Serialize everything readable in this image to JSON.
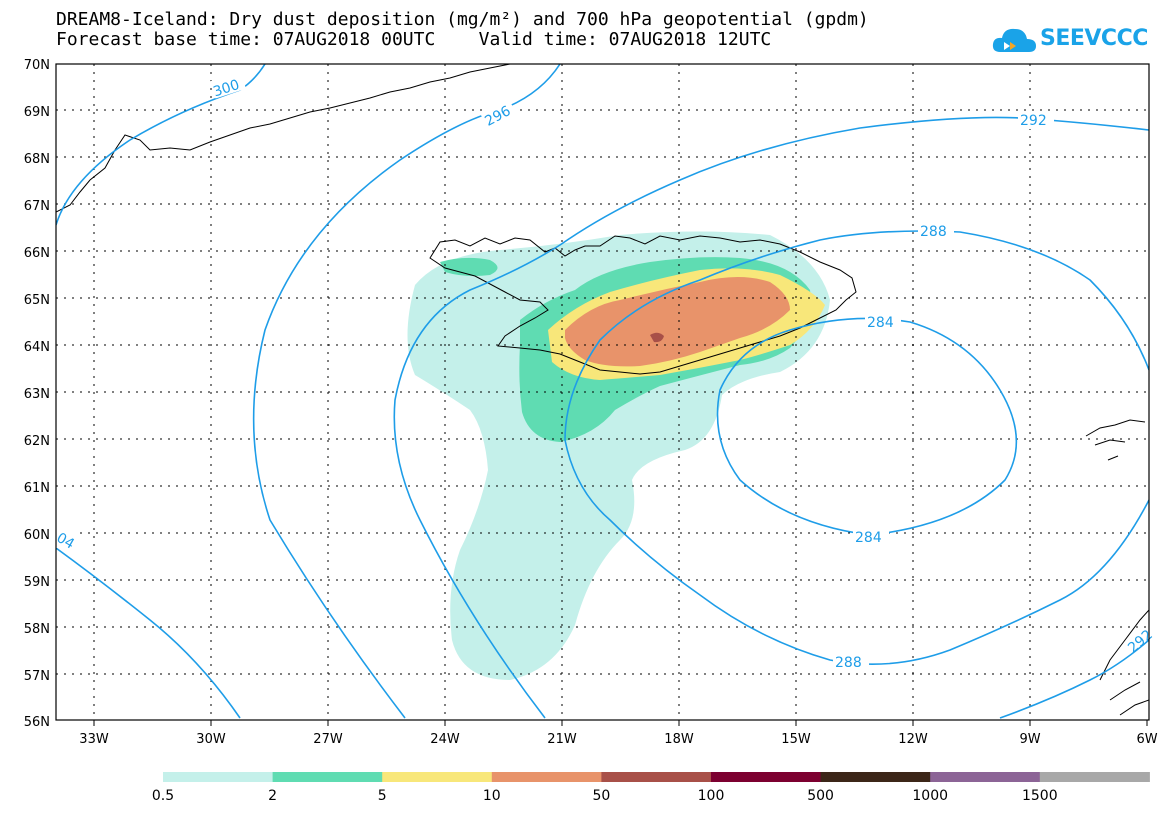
{
  "title": {
    "line1": "DREAM8-Iceland: Dry dust deposition (mg/m²) and 700 hPa geopotential (gpdm)",
    "line2": "Forecast base time: 07AUG2018 00UTC    Valid time: 07AUG2018 12UTC"
  },
  "logo": {
    "text": "SEEVCCC",
    "icon": "cloud-icon",
    "color": "#1aa3e8"
  },
  "map": {
    "lat_labels": [
      "70N",
      "69N",
      "68N",
      "67N",
      "66N",
      "65N",
      "64N",
      "63N",
      "62N",
      "61N",
      "60N",
      "59N",
      "58N",
      "57N",
      "56N"
    ],
    "lon_labels": [
      "33W",
      "30W",
      "27W",
      "24W",
      "21W",
      "18W",
      "15W",
      "12W",
      "9W",
      "6W"
    ],
    "contour_labels": [
      "300",
      "296",
      "292",
      "288",
      "284",
      "284",
      "288",
      "04",
      "292"
    ]
  },
  "legend": {
    "labels": [
      "0.5",
      "2",
      "5",
      "10",
      "50",
      "100",
      "500",
      "1000",
      "1500"
    ],
    "colors": [
      "#c4f0ea",
      "#5fdcb2",
      "#f8e77a",
      "#e8936a",
      "#a85048",
      "#7c0030",
      "#3c2618",
      "#8c6496",
      "#a8a8a8"
    ]
  }
}
